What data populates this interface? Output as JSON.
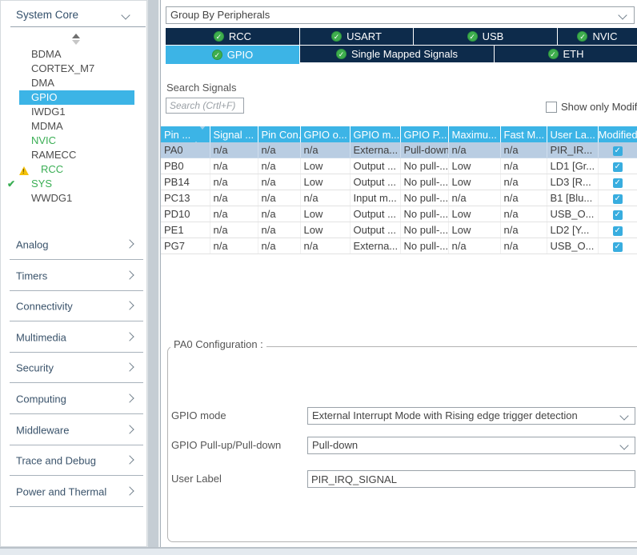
{
  "colors": {
    "accent": "#3cb4e6",
    "tab_navy": "#0d2b4b",
    "configured_green": "#3aae54",
    "row_highlight": "#b9cde2",
    "warning_yellow": "#f5c20a",
    "checkbox_blue": "#38addf"
  },
  "icons": {
    "tab_check": "✓",
    "modified_check": "✓",
    "configured_check": "✔",
    "warning_mark": "!"
  },
  "sidebar": {
    "section_label": "System Core",
    "items": [
      {
        "label": "BDMA"
      },
      {
        "label": "CORTEX_M7"
      },
      {
        "label": "DMA"
      },
      {
        "label": "GPIO",
        "selected": true
      },
      {
        "label": "IWDG1"
      },
      {
        "label": "MDMA"
      },
      {
        "label": "NVIC",
        "configured": true
      },
      {
        "label": "RAMECC"
      },
      {
        "label": "RCC",
        "configured": true,
        "icon": "warning"
      },
      {
        "label": "SYS",
        "configured": true,
        "icon": "check"
      },
      {
        "label": "WWDG1"
      }
    ],
    "categories": [
      "Analog",
      "Timers",
      "Connectivity",
      "Multimedia",
      "Security",
      "Computing",
      "Middleware",
      "Trace and Debug",
      "Power and Thermal"
    ]
  },
  "main": {
    "group_by": {
      "value": "Group By Peripherals"
    },
    "tabs": {
      "row1": [
        {
          "label": "RCC"
        },
        {
          "label": "USART"
        },
        {
          "label": "USB"
        },
        {
          "label": "NVIC"
        }
      ],
      "row2": [
        {
          "label": "GPIO",
          "active": true
        },
        {
          "label": "Single Mapped Signals"
        },
        {
          "label": "ETH"
        }
      ]
    },
    "search": {
      "label": "Search Signals",
      "placeholder": "Search (Crtl+F)",
      "filter_label": "Show only Modified Pins",
      "filter_checked": false
    },
    "table": {
      "columns": [
        "Pin ...",
        "Signal ...",
        "Pin Con...",
        "GPIO o...",
        "GPIO m...",
        "GPIO P...",
        "Maximu...",
        "Fast M...",
        "User La...",
        "Modified"
      ],
      "rows": [
        {
          "cells": [
            "PA0",
            "n/a",
            "n/a",
            "n/a",
            "Externa...",
            "Pull-down",
            "n/a",
            "n/a",
            "PIR_IR..."
          ],
          "modified": true,
          "selected": true
        },
        {
          "cells": [
            "PB0",
            "n/a",
            "n/a",
            "Low",
            "Output ...",
            "No pull-...",
            "Low",
            "n/a",
            "LD1 [Gr..."
          ],
          "modified": true
        },
        {
          "cells": [
            "PB14",
            "n/a",
            "n/a",
            "Low",
            "Output ...",
            "No pull-...",
            "Low",
            "n/a",
            "LD3 [R..."
          ],
          "modified": true
        },
        {
          "cells": [
            "PC13",
            "n/a",
            "n/a",
            "n/a",
            "Input m...",
            "No pull-...",
            "n/a",
            "n/a",
            "B1 [Blu..."
          ],
          "modified": true
        },
        {
          "cells": [
            "PD10",
            "n/a",
            "n/a",
            "Low",
            "Output ...",
            "No pull-...",
            "Low",
            "n/a",
            "USB_O..."
          ],
          "modified": true
        },
        {
          "cells": [
            "PE1",
            "n/a",
            "n/a",
            "Low",
            "Output ...",
            "No pull-...",
            "Low",
            "n/a",
            "LD2 [Y..."
          ],
          "modified": true
        },
        {
          "cells": [
            "PG7",
            "n/a",
            "n/a",
            "n/a",
            "Externa...",
            "No pull-...",
            "n/a",
            "n/a",
            "USB_O..."
          ],
          "modified": true
        }
      ]
    },
    "config": {
      "title": "PA0 Configuration :",
      "fields": [
        {
          "label": "GPIO mode",
          "value": "External Interrupt Mode with Rising edge trigger detection",
          "type": "select"
        },
        {
          "label": "GPIO Pull-up/Pull-down",
          "value": "Pull-down",
          "type": "select"
        },
        {
          "label": "User Label",
          "value": "PIR_IRQ_SIGNAL",
          "type": "text"
        }
      ]
    }
  }
}
